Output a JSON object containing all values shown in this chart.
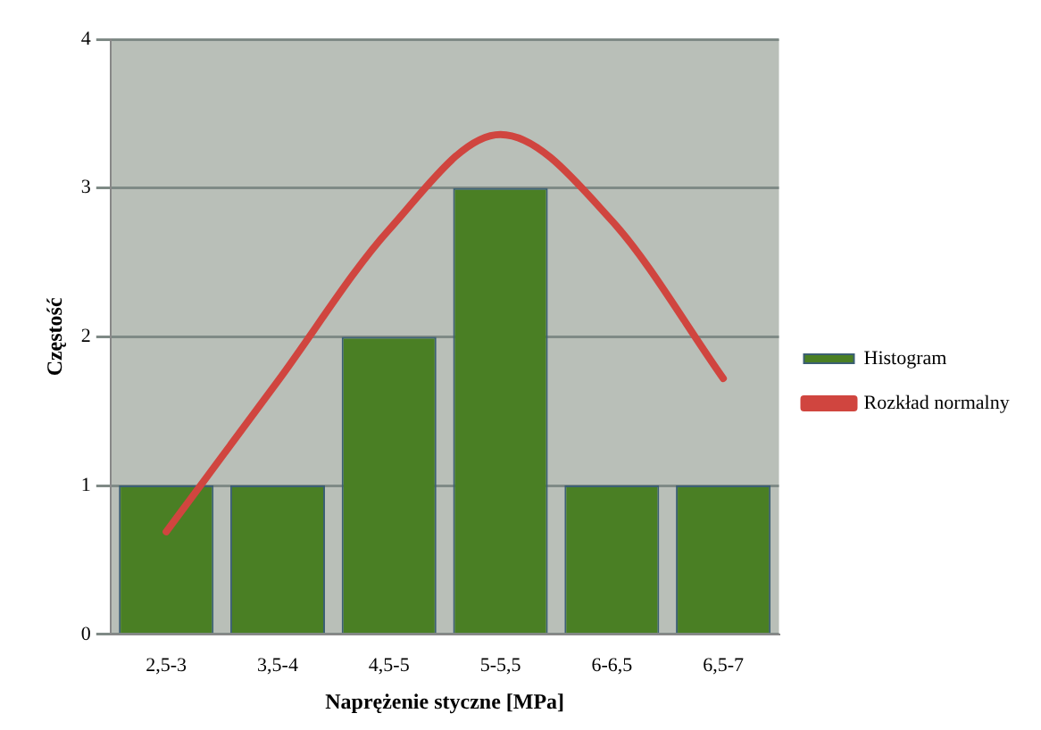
{
  "chart_data": {
    "type": "bar",
    "xlabel": "Naprężenie styczne [MPa]",
    "ylabel": "Częstość",
    "categories": [
      "2,5-3",
      "3,5-4",
      "4,5-5",
      "5-5,5",
      "6-6,5",
      "6,5-7"
    ],
    "series": [
      {
        "name": "Histogram",
        "color": "#4a7f24",
        "values": [
          1,
          1,
          2,
          3,
          1,
          1
        ]
      },
      {
        "name": "Rozkład normalny",
        "type": "line",
        "color": "#d0453f",
        "values": [
          0.69,
          1.7,
          2.72,
          3.36,
          2.78,
          1.72
        ]
      }
    ],
    "ylim": [
      0,
      4
    ],
    "yticks": [
      0,
      1,
      2,
      3,
      4
    ],
    "grid": "y",
    "legend": "right",
    "marker": "none"
  }
}
